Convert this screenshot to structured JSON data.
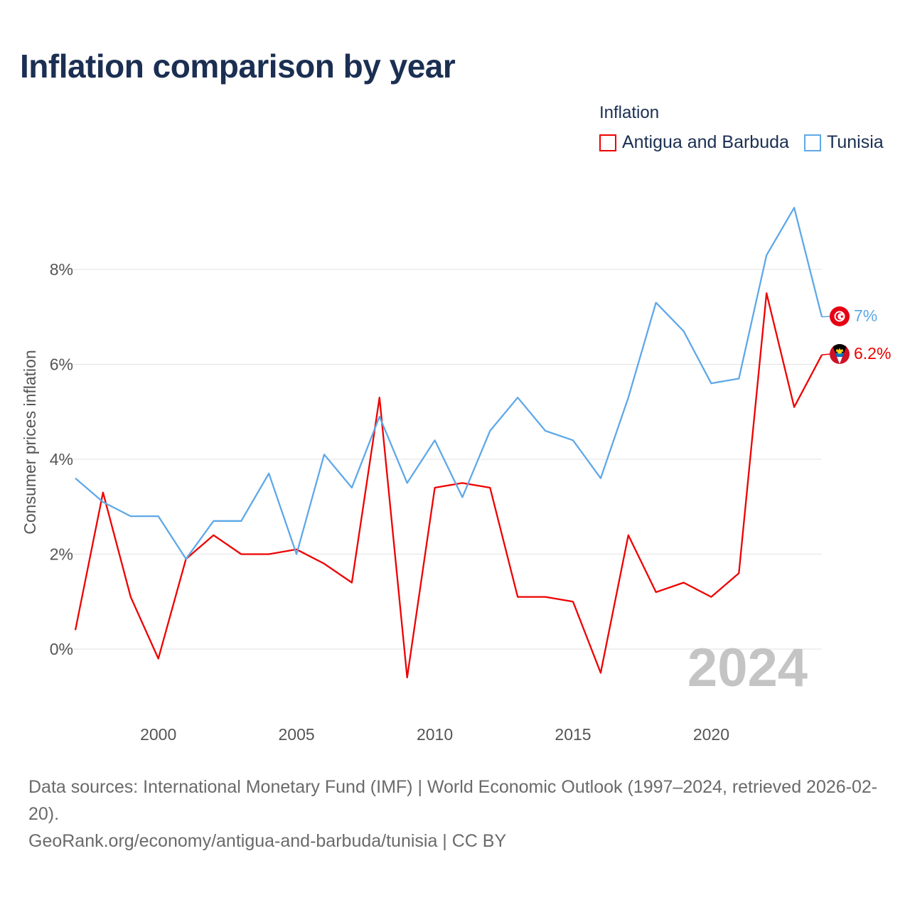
{
  "title": "Inflation comparison by year",
  "legend": {
    "title": "Inflation",
    "items": [
      {
        "name": "Antigua and Barbuda",
        "color": "#ee0000"
      },
      {
        "name": "Tunisia",
        "color": "#5fa8e8"
      }
    ]
  },
  "chart_data": {
    "type": "line",
    "title": "Inflation comparison by year",
    "xlabel": "",
    "ylabel": "Consumer prices inflation",
    "x": [
      1997,
      1998,
      1999,
      2000,
      2001,
      2002,
      2003,
      2004,
      2005,
      2006,
      2007,
      2008,
      2009,
      2010,
      2011,
      2012,
      2013,
      2014,
      2015,
      2016,
      2017,
      2018,
      2019,
      2020,
      2021,
      2022,
      2023,
      2024
    ],
    "xlim": [
      1997,
      2024
    ],
    "ylim": [
      -1.2,
      10
    ],
    "x_ticks": [
      2000,
      2005,
      2010,
      2015,
      2020
    ],
    "y_ticks": [
      0,
      2,
      4,
      6,
      8
    ],
    "y_tick_labels": [
      "0%",
      "2%",
      "4%",
      "6%",
      "8%"
    ],
    "grid": true,
    "legend_position": "top-right",
    "series": [
      {
        "name": "Antigua and Barbuda",
        "color": "#ee0000",
        "values": [
          0.4,
          3.3,
          1.1,
          -0.2,
          1.9,
          2.4,
          2.0,
          2.0,
          2.1,
          1.8,
          1.4,
          5.3,
          -0.6,
          3.4,
          3.5,
          3.4,
          1.1,
          1.1,
          1.0,
          -0.5,
          2.4,
          1.2,
          1.4,
          1.1,
          1.6,
          7.5,
          5.1,
          6.2
        ],
        "end_label": "6.2%"
      },
      {
        "name": "Tunisia",
        "color": "#5fa8e8",
        "values": [
          3.6,
          3.1,
          2.8,
          2.8,
          1.9,
          2.7,
          2.7,
          3.7,
          2.0,
          4.1,
          3.4,
          4.9,
          3.5,
          4.4,
          3.2,
          4.6,
          5.3,
          4.6,
          4.4,
          3.6,
          5.3,
          7.3,
          6.7,
          5.6,
          5.7,
          8.3,
          9.3,
          7.0
        ],
        "end_label": "7%"
      }
    ],
    "year_label": "2024"
  },
  "footer": {
    "sources": "Data sources: International Monetary Fund (IMF) | World Economic Outlook (1997–2024, retrieved 2026-02-20).",
    "link": "GeoRank.org/economy/antigua-and-barbuda/tunisia | CC BY"
  }
}
